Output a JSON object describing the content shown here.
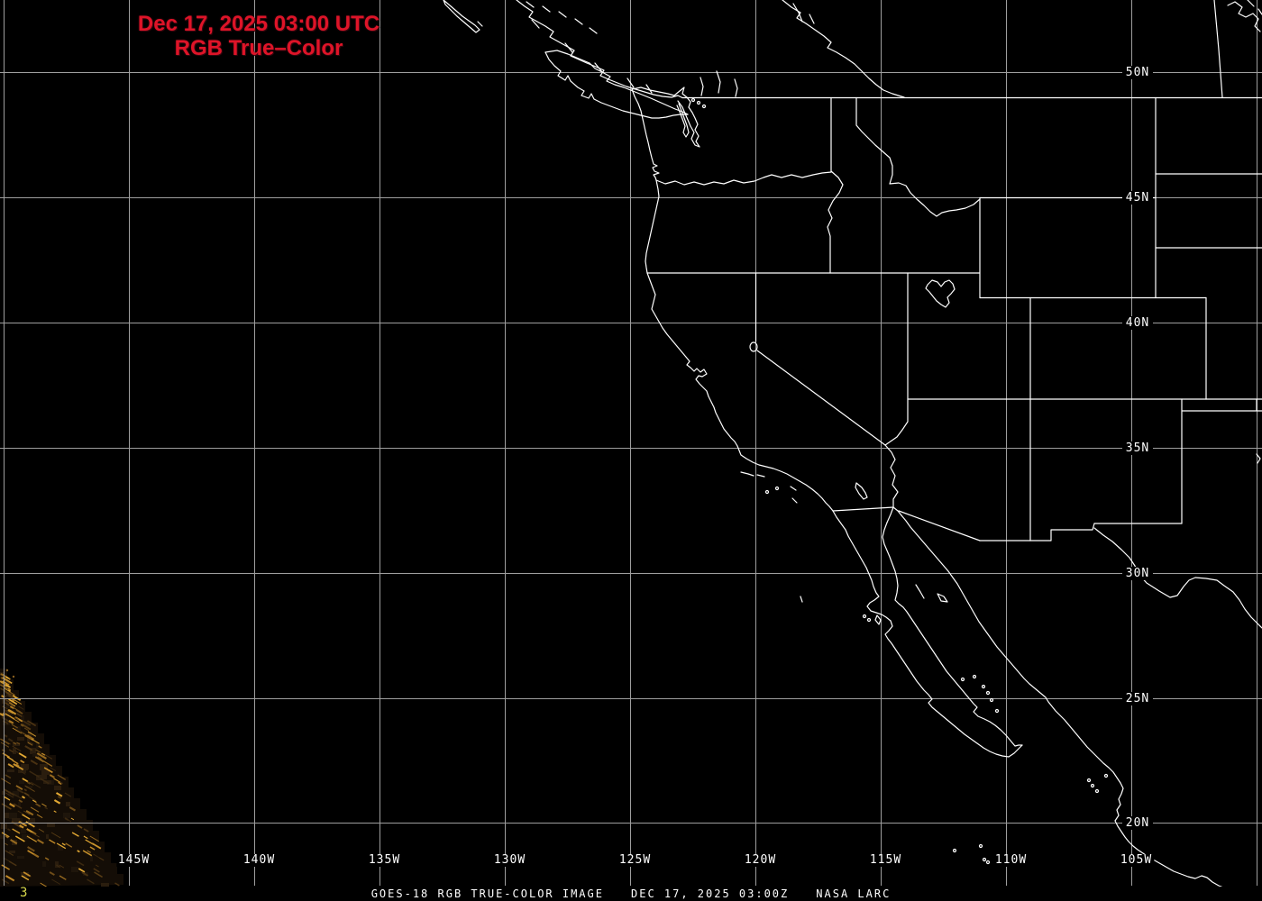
{
  "header": {
    "line1": "Dec 17, 2025 03:00 UTC",
    "line2": "RGB True–Color"
  },
  "axis": {
    "longitude_labels": [
      "145W",
      "140W",
      "135W",
      "130W",
      "125W",
      "120W",
      "115W",
      "110W",
      "105W"
    ],
    "latitude_labels": [
      "50N",
      "45N",
      "40N",
      "35N",
      "30N",
      "25N",
      "20N"
    ]
  },
  "footer": {
    "product": "GOES-18 RGB TRUE-COLOR IMAGE",
    "timestamp": "DEC 17, 2025 03:00Z",
    "credit": "NASA LARC",
    "frame_indicator": "3"
  },
  "colors": {
    "background": "#000000",
    "gridline": "#9e9e9e",
    "coastline": "#ffffff",
    "title_red": "#de1428",
    "frame_indicator_yellow": "#d8d84a",
    "terminator_base": "#140d06",
    "terminator_glow": "#e2a833"
  }
}
